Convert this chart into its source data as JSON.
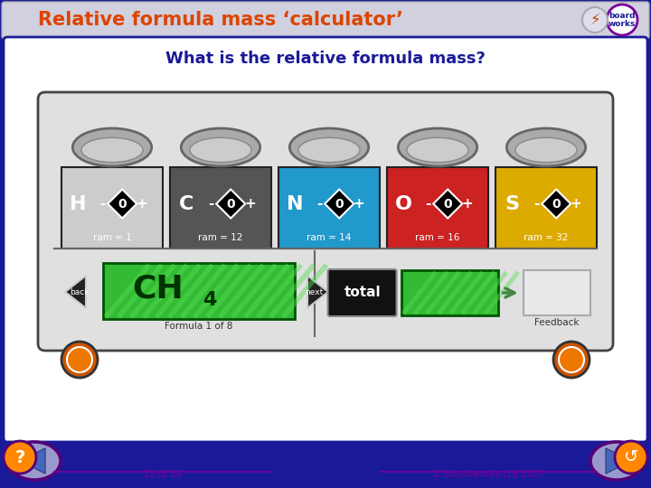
{
  "title": "Relative formula mass ‘calculator’",
  "subtitle": "What is the relative formula mass?",
  "bg_outer": "#1a1a99",
  "bg_header": "#ccccdd",
  "bg_main": "#ffffff",
  "header_text_color": "#dd4400",
  "subtitle_color": "#1a1a99",
  "elements": [
    "H",
    "C",
    "N",
    "O",
    "S"
  ],
  "element_colors": [
    "#cccccc",
    "#555555",
    "#2299cc",
    "#cc2222",
    "#ddaa00"
  ],
  "element_rams": [
    "ram = 1",
    "ram = 12",
    "ram = 14",
    "ram = 16",
    "ram = 32"
  ],
  "formula_text": "CH",
  "formula_sub": "4",
  "page_info": "12 of 54",
  "copyright": "© Boardworks Ltd 2007",
  "nav_arrow_fill": "#8899cc",
  "nav_arrow_edge": "#440066",
  "question_fill": "#ff8800",
  "refresh_fill": "#ff8800"
}
